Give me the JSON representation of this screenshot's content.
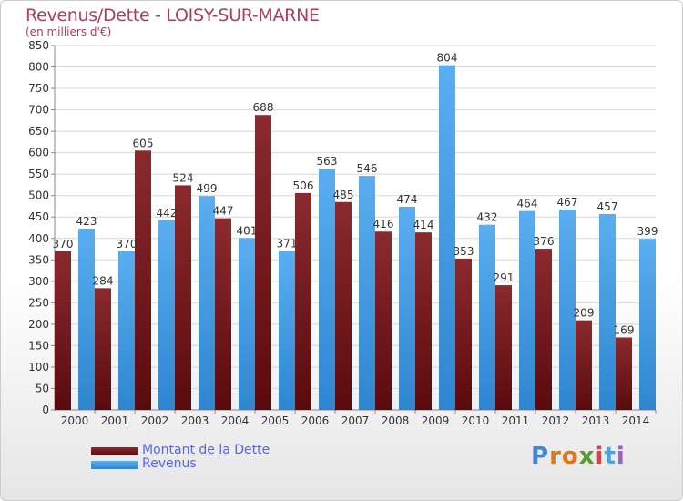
{
  "header": {
    "title": "Revenus/Dette - LOISY-SUR-MARNE",
    "subtitle": "(en milliers d'€)"
  },
  "legend": {
    "items": [
      {
        "label": "Montant de la Dette",
        "color": "#6b1016"
      },
      {
        "label": "Revenus",
        "color": "#3f9ae6"
      }
    ]
  },
  "logo": {
    "text": "Proxiti",
    "letter_colors": [
      "#3f86d8",
      "#e0781a",
      "#e0781a",
      "#5a9a2e",
      "#d64545",
      "#4aa3df",
      "#9c62c1"
    ]
  },
  "chart_data": {
    "type": "bar",
    "title": "Revenus/Dette - LOISY-SUR-MARNE",
    "subtitle": "(en milliers d'€)",
    "xlabel": "",
    "ylabel": "",
    "ylim": [
      0,
      850
    ],
    "ytick_step": 50,
    "grid": true,
    "legend_position": "bottom-left",
    "categories": [
      "2000",
      "2001",
      "2002",
      "2003",
      "2004",
      "2005",
      "2006",
      "2007",
      "2008",
      "2009",
      "2010",
      "2011",
      "2012",
      "2013",
      "2014"
    ],
    "series": [
      {
        "name": "Montant de la Dette",
        "color": "#6b1016",
        "values": [
          370,
          284,
          605,
          524,
          447,
          688,
          506,
          485,
          416,
          414,
          353,
          291,
          376,
          209,
          169
        ]
      },
      {
        "name": "Revenus",
        "color": "#3f9ae6",
        "values": [
          423,
          370,
          442,
          499,
          401,
          371,
          563,
          546,
          474,
          804,
          432,
          464,
          467,
          457,
          399
        ]
      }
    ]
  }
}
